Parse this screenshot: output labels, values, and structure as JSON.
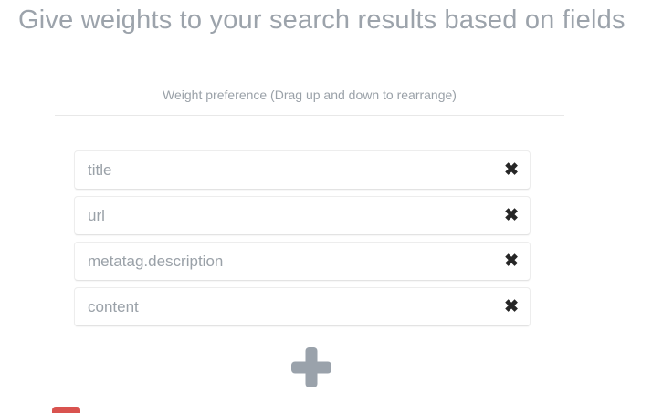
{
  "page": {
    "title": "Give weights to your search results based on fields",
    "subtitle": "Weight preference (Drag up and down to rearrange)"
  },
  "weights": {
    "fields": [
      {
        "label": "title"
      },
      {
        "label": "url"
      },
      {
        "label": "metatag.description"
      },
      {
        "label": "content"
      }
    ],
    "remove_icon_glyph": "✖"
  },
  "colors": {
    "heading_text": "#9ca3ab",
    "muted_text": "#9aa1a8",
    "divider": "#e8e8e8",
    "row_border": "#ededed",
    "remove_icon": "#262626",
    "plus_icon": "#9aa2ab",
    "danger_red": "#d9534f"
  }
}
